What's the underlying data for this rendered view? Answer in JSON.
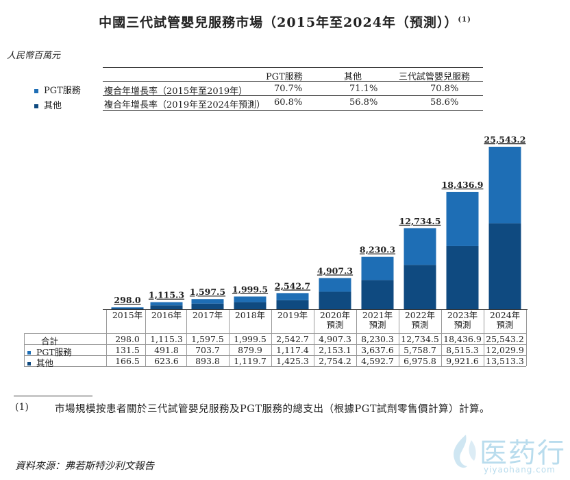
{
  "title": "中國三代試管嬰兒服務市場（2015年至2024年（預測））",
  "title_note": "(1)",
  "unit": "人民幣百萬元",
  "legend": [
    {
      "label": "PGT服務",
      "color": "#1e6eb5"
    },
    {
      "label": "其他",
      "color": "#0f4a80"
    }
  ],
  "cagr": {
    "headers": [
      "PGT服務",
      "其他",
      "三代試管嬰兒服務"
    ],
    "rows": [
      {
        "period": "複合年增長率（2015年至2019年）",
        "values": [
          "70.7%",
          "71.1%",
          "70.8%"
        ]
      },
      {
        "period": "複合年增長率（2019年至2024年預測）",
        "values": [
          "60.8%",
          "56.8%",
          "58.6%"
        ]
      }
    ]
  },
  "chart_data": {
    "type": "bar",
    "stacked": true,
    "categories": [
      "2015年",
      "2016年",
      "2017年",
      "2018年",
      "2019年",
      "2020年\n預測",
      "2021年\n預測",
      "2022年\n預測",
      "2023年\n預測",
      "2024年\n預測"
    ],
    "series": [
      {
        "name": "其他",
        "values": [
          166.5,
          623.6,
          893.8,
          1119.7,
          1425.3,
          2754.2,
          4592.7,
          6975.8,
          9921.6,
          13513.3
        ],
        "color": "#0f4a80"
      },
      {
        "name": "PGT服務",
        "values": [
          131.5,
          491.8,
          703.7,
          879.9,
          1117.4,
          2153.1,
          3637.6,
          5758.7,
          8515.3,
          12029.9
        ],
        "color": "#1e6eb5"
      }
    ],
    "totals": [
      298.0,
      1115.3,
      1597.5,
      1999.5,
      2542.7,
      4907.3,
      8230.3,
      12734.5,
      18436.9,
      25543.2
    ],
    "total_labels": [
      "298.0",
      "1,115.3",
      "1,597.5",
      "1,999.5",
      "2,542.7",
      "4,907.3",
      "8,230.3",
      "12,734.5",
      "18,436.9",
      "25,543.2"
    ]
  },
  "data_table": {
    "row_labels": [
      "合計",
      "PGT服務",
      "其他"
    ],
    "rows": [
      [
        "298.0",
        "1,115.3",
        "1,597.5",
        "1,999.5",
        "2,542.7",
        "4,907.3",
        "8,230.3",
        "12,734.5",
        "18,436.9",
        "25,543.2"
      ],
      [
        "131.5",
        "491.8",
        "703.7",
        "879.9",
        "1,117.4",
        "2,153.1",
        "3,637.6",
        "5,758.7",
        "8,515.3",
        "12,029.9"
      ],
      [
        "166.5",
        "623.6",
        "893.8",
        "1,119.7",
        "1,425.3",
        "2,754.2",
        "4,592.7",
        "6,975.8",
        "9,921.6",
        "13,513.3"
      ]
    ]
  },
  "footnote": {
    "number": "(1)",
    "text": "市場規模按患者關於三代試管嬰兒服務及PGT服務的總支出（根據PGT試劑零售價計算）計算。"
  },
  "source": "資料來源：弗若斯特沙利文報告",
  "watermark": {
    "cn": "医药行",
    "en": "yiyaohang.com"
  }
}
